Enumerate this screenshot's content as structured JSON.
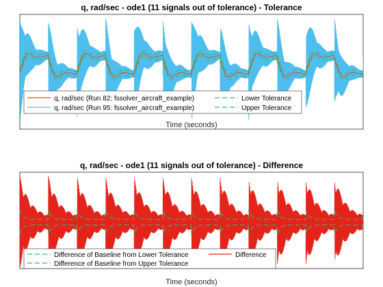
{
  "chart_data": [
    {
      "type": "line",
      "title": "q, rad/sec - ode1 (11 signals out of tolerance) - Tolerance",
      "xlabel": "Time (seconds)",
      "ylabel": "",
      "grid": false,
      "legend_placement": "bottom-left",
      "legend": {
        "column_left": [
          "q, rad/sec (Run 82: fssolver_aircraft_example)",
          "q, rad/sec (Run 95: fssolver_aircraft_example)"
        ],
        "column_right": [
          "Lower Tolerance",
          "Upper Tolerance"
        ]
      },
      "series": [
        {
          "name": "q, rad/sec (Run 82: fssolver_aircraft_example)",
          "color": "#D95319",
          "style": "solid"
        },
        {
          "name": "q, rad/sec (Run 95: fssolver_aircraft_example)",
          "color": "#4DBEEE",
          "style": "solid"
        },
        {
          "name": "Lower Tolerance",
          "color": "#3CB371",
          "style": "dashed"
        },
        {
          "name": "Upper Tolerance",
          "color": "#3CB371",
          "style": "dashed"
        }
      ],
      "periods": 6,
      "ylim": [
        -1,
        1
      ]
    },
    {
      "type": "line",
      "title": "q, rad/sec - ode1 (11 signals out of tolerance) - Difference",
      "xlabel": "Time (seconds)",
      "ylabel": "",
      "grid": false,
      "legend_placement": "bottom-left",
      "legend": {
        "column_left": [
          "Difference of Baseline from Lower Tolerance",
          "Difference of Baseline from Upper Tolerance"
        ],
        "column_right": [
          "Difference"
        ]
      },
      "series": [
        {
          "name": "Difference of Baseline from Lower Tolerance",
          "color": "#3CB371",
          "style": "dashed"
        },
        {
          "name": "Difference of Baseline from Upper Tolerance",
          "color": "#3CB371",
          "style": "dashed"
        },
        {
          "name": "Difference",
          "color": "#E3241B",
          "style": "solid"
        }
      ],
      "periods": 6,
      "ylim": [
        -1,
        1
      ]
    }
  ]
}
